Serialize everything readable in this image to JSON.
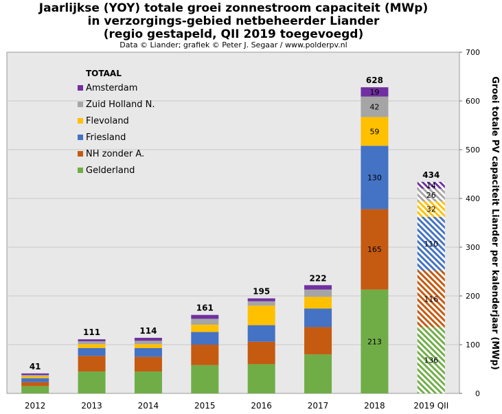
{
  "chart_data": {
    "type": "bar",
    "stacked": true,
    "title": [
      "Jaarlijkse (YOY) totale groei zonnestroom capaciteit (MWp)",
      "in verzorgings-gebied netbeheerder Liander",
      "(regio gestapeld, QII 2019 toegevoegd)"
    ],
    "subtitle": "Data © Liander; grafiek © Peter J. Segaar / www.polderpv.nl",
    "ylabel": "Groei totale PV capaciteit Liander per kalenderjaar (MWp)",
    "ylim": [
      0,
      700
    ],
    "yticks": [
      0,
      100,
      200,
      300,
      400,
      500,
      600,
      700
    ],
    "categories": [
      "2012",
      "2013",
      "2014",
      "2015",
      "2016",
      "2017",
      "2018",
      "2019 QII"
    ],
    "series": [
      {
        "name": "Gelderland",
        "color": "#70ad47",
        "values": [
          15,
          45,
          45,
          58,
          60,
          80,
          213,
          136
        ]
      },
      {
        "name": "NH zonder A.",
        "color": "#c55a11",
        "values": [
          8,
          32,
          30,
          42,
          46,
          56,
          165,
          116
        ]
      },
      {
        "name": "Friesland",
        "color": "#4472c4",
        "values": [
          8,
          16,
          18,
          26,
          34,
          38,
          130,
          110
        ]
      },
      {
        "name": "Flevoland",
        "color": "#ffc000",
        "values": [
          4,
          8,
          8,
          15,
          40,
          24,
          59,
          32
        ]
      },
      {
        "name": "Zuid Holland N.",
        "color": "#a5a5a5",
        "values": [
          3,
          6,
          7,
          12,
          9,
          15,
          42,
          26
        ]
      },
      {
        "name": "Amsterdam",
        "color": "#7030a0",
        "values": [
          3,
          4,
          6,
          8,
          6,
          9,
          19,
          14
        ]
      }
    ],
    "totals": [
      41,
      111,
      114,
      161,
      195,
      222,
      628,
      434
    ],
    "segment_labels": {
      "2018": [
        213,
        165,
        130,
        59,
        42,
        19
      ],
      "2019 QII": [
        136,
        116,
        110,
        32,
        26,
        14
      ]
    },
    "hatched_categories": [
      "2019 QII"
    ],
    "legend": {
      "title": "TOTAAL",
      "position": "top-left",
      "entries": [
        "Amsterdam",
        "Zuid Holland N.",
        "Flevoland",
        "Friesland",
        "NH zonder A.",
        "Gelderland"
      ]
    },
    "background_color": "#e8e8e8",
    "grid": true
  }
}
